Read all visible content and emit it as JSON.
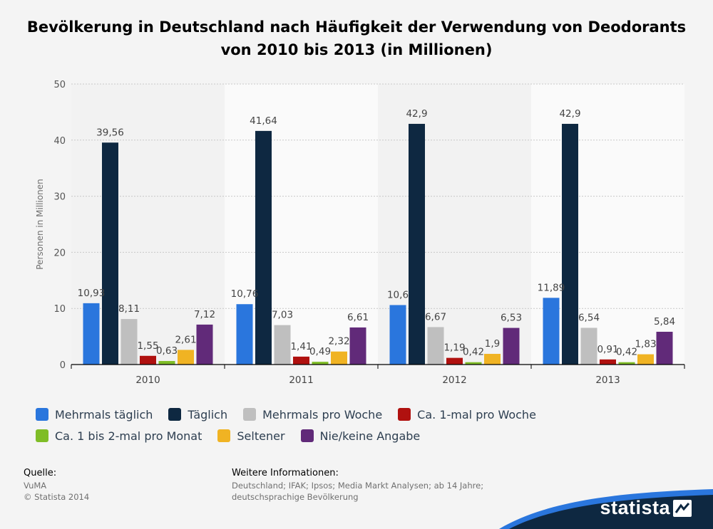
{
  "title_line1": "Bevölkerung in Deutschland nach Häufigkeit der Verwendung von Deodorants",
  "title_line2": "von 2010 bis 2013 (in Millionen)",
  "chart_data": {
    "type": "bar",
    "categories": [
      "2010",
      "2011",
      "2012",
      "2013"
    ],
    "ylabel": "Personen in Millionen",
    "ylim": [
      0,
      50
    ],
    "yticks": [
      0,
      10,
      20,
      30,
      40,
      50
    ],
    "grid": true,
    "legend_position": "bottom",
    "series": [
      {
        "name": "Mehrmals täglich",
        "color": "#2a76dd",
        "values": [
          10.93,
          10.76,
          10.6,
          11.89
        ],
        "labels": [
          "10,93",
          "10,76",
          "10,6",
          "11,89"
        ]
      },
      {
        "name": "Täglich",
        "color": "#0e2841",
        "values": [
          39.56,
          41.64,
          42.9,
          42.9
        ],
        "labels": [
          "39,56",
          "41,64",
          "42,9",
          "42,9"
        ]
      },
      {
        "name": "Mehrmals pro Woche",
        "color": "#bfbfbf",
        "values": [
          8.11,
          7.03,
          6.67,
          6.54
        ],
        "labels": [
          "8,11",
          "7,03",
          "6,67",
          "6,54"
        ]
      },
      {
        "name": "Ca. 1-mal pro Woche",
        "color": "#b0110f",
        "values": [
          1.55,
          1.41,
          1.19,
          0.91
        ],
        "labels": [
          "1,55",
          "1,41",
          "1,19",
          "0,91"
        ]
      },
      {
        "name": "Ca. 1 bis 2-mal pro Monat",
        "color": "#7fbd27",
        "values": [
          0.63,
          0.49,
          0.42,
          0.42
        ],
        "labels": [
          "0,63",
          "0,49",
          "0,42",
          "0,42"
        ]
      },
      {
        "name": "Seltener",
        "color": "#f0b323",
        "values": [
          2.61,
          2.32,
          1.9,
          1.83
        ],
        "labels": [
          "2,61",
          "2,32",
          "1,9",
          "1,83"
        ]
      },
      {
        "name": "Nie/keine Angabe",
        "color": "#612a79",
        "values": [
          7.12,
          6.61,
          6.53,
          5.84
        ],
        "labels": [
          "7,12",
          "6,61",
          "6,53",
          "5,84"
        ]
      }
    ]
  },
  "source": {
    "heading": "Quelle:",
    "line1": "VuMA",
    "line2": "© Statista 2014"
  },
  "info": {
    "heading": "Weitere Informationen:",
    "line1": "Deutschland; IFAK; Ipsos; Media Markt Analysen; ab 14 Jahre;",
    "line2": "deutschsprachige Bevölkerung"
  },
  "brand": {
    "name": "statista",
    "color": "#0e2841",
    "accent": "#2a76dd"
  }
}
